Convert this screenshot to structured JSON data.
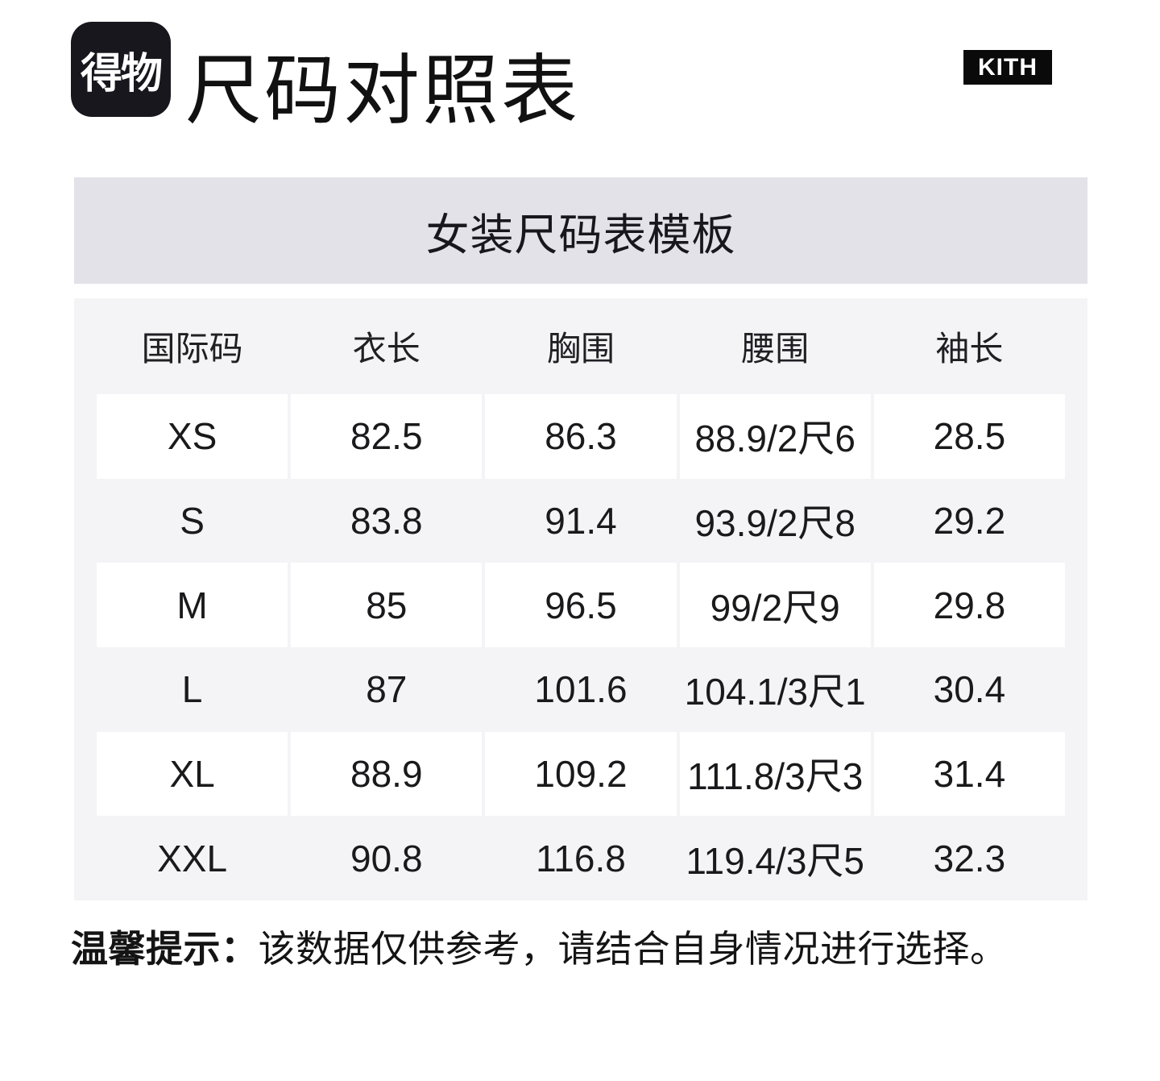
{
  "header": {
    "logo_text": "得物",
    "title": "尺码对照表",
    "brand": "KITH"
  },
  "banner": {
    "title": "女装尺码表模板"
  },
  "table": {
    "columns": [
      "国际码",
      "衣长",
      "胸围",
      "腰围",
      "袖长"
    ],
    "rows": [
      [
        "XS",
        "82.5",
        "86.3",
        "88.9/2尺6",
        "28.5"
      ],
      [
        "S",
        "83.8",
        "91.4",
        "93.9/2尺8",
        "29.2"
      ],
      [
        "M",
        "85",
        "96.5",
        "99/2尺9",
        "29.8"
      ],
      [
        "L",
        "87",
        "101.6",
        "104.1/3尺1",
        "30.4"
      ],
      [
        "XL",
        "88.9",
        "109.2",
        "111.8/3尺3",
        "31.4"
      ],
      [
        "XXL",
        "90.8",
        "116.8",
        "119.4/3尺5",
        "32.3"
      ]
    ]
  },
  "note": {
    "label": "温馨提示：",
    "text": "该数据仅供参考，请结合自身情况进行选择。"
  },
  "colors": {
    "banner_bg": "#e2e2e8",
    "table_bg": "#f4f4f7",
    "cell_bg": "#ffffff",
    "logo_bg": "#17171d",
    "brand_bg": "#0a0a0a",
    "text": "#1c1c1c"
  },
  "chart_data": {
    "type": "table",
    "title": "女装尺码表模板",
    "columns": [
      "国际码",
      "衣长",
      "胸围",
      "腰围",
      "袖长"
    ],
    "rows": [
      [
        "XS",
        "82.5",
        "86.3",
        "88.9/2尺6",
        "28.5"
      ],
      [
        "S",
        "83.8",
        "91.4",
        "93.9/2尺8",
        "29.2"
      ],
      [
        "M",
        "85",
        "96.5",
        "99/2尺9",
        "29.8"
      ],
      [
        "L",
        "87",
        "101.6",
        "104.1/3尺1",
        "30.4"
      ],
      [
        "XL",
        "88.9",
        "109.2",
        "111.8/3尺3",
        "31.4"
      ],
      [
        "XXL",
        "90.8",
        "116.8",
        "119.4/3尺5",
        "32.3"
      ]
    ],
    "footnote": "温馨提示：该数据仅供参考，请结合自身情况进行选择。"
  }
}
